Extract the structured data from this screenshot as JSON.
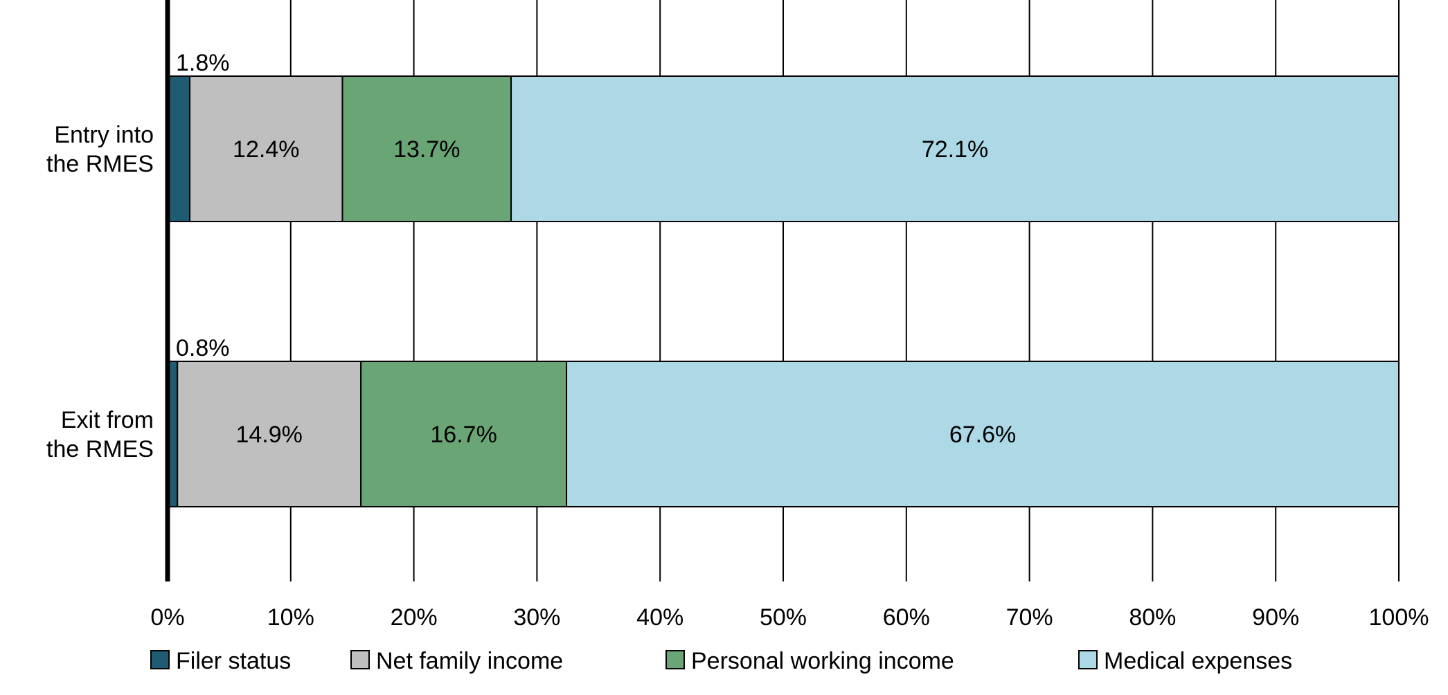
{
  "chart_data": {
    "type": "bar",
    "orientation": "horizontal",
    "stacked": true,
    "categories": [
      [
        "Entry into",
        "the RMES"
      ],
      [
        "Exit from",
        "the RMES"
      ]
    ],
    "series": [
      {
        "name": "Filer status",
        "color": "#1f5c73",
        "values": [
          1.8,
          0.8
        ],
        "labels": [
          "1.8%",
          "0.8%"
        ],
        "label_position": "above"
      },
      {
        "name": "Net family income",
        "color": "#bfbfbf",
        "values": [
          12.4,
          14.9
        ],
        "labels": [
          "12.4%",
          "14.9%"
        ],
        "label_position": "center"
      },
      {
        "name": "Personal working income",
        "color": "#6aa576",
        "values": [
          13.7,
          16.7
        ],
        "labels": [
          "13.7%",
          "16.7%"
        ],
        "label_position": "center"
      },
      {
        "name": "Medical expenses",
        "color": "#add8e6",
        "values": [
          72.1,
          67.6
        ],
        "labels": [
          "72.1%",
          "67.6%"
        ],
        "label_position": "center"
      }
    ],
    "xlim": [
      0,
      100
    ],
    "xticks": [
      0,
      10,
      20,
      30,
      40,
      50,
      60,
      70,
      80,
      90,
      100
    ],
    "xtick_labels": [
      "0%",
      "10%",
      "20%",
      "30%",
      "40%",
      "50%",
      "60%",
      "70%",
      "80%",
      "90%",
      "100%"
    ],
    "grid": true,
    "legend": "bottom",
    "title": "",
    "xlabel": "",
    "ylabel": ""
  }
}
